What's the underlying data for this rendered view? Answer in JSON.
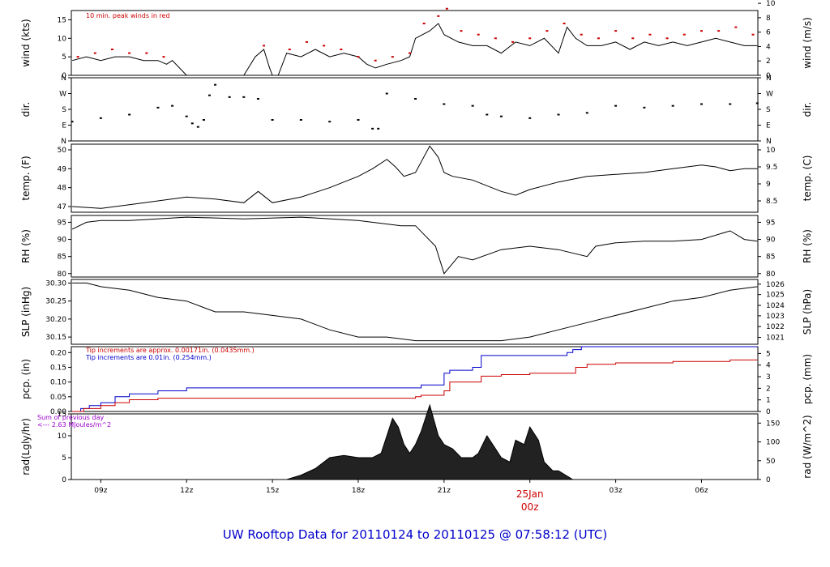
{
  "title": "UW Rooftop Data for 20110124  to  20110125 @ 07:58:12  (UTC)",
  "colors": {
    "red": "#cc0000",
    "blue": "#0000cc",
    "purple": "#9900cc",
    "black": "#000000"
  },
  "chart_data": {
    "type": "line",
    "x_range_utc_hours": [
      7.97,
      31.97
    ],
    "x_ticks": [
      {
        "label": "09z",
        "hour": 9
      },
      {
        "label": "12z",
        "hour": 12
      },
      {
        "label": "15z",
        "hour": 15
      },
      {
        "label": "18z",
        "hour": 18
      },
      {
        "label": "21z",
        "hour": 21
      },
      {
        "label": "03z",
        "hour": 27
      },
      {
        "label": "06z",
        "hour": 30
      }
    ],
    "date_marker": {
      "label": "25Jan",
      "sublabel": "00z",
      "hour": 24
    },
    "panels": [
      {
        "id": "wind",
        "ylabel_left": "wind (kts)",
        "ylabel_right": "wind (m/s)",
        "ylim": [
          0,
          17.5
        ],
        "left_ticks": [
          "0",
          "5",
          "10",
          "15"
        ],
        "left_tick_values": [
          0,
          5,
          10,
          15
        ],
        "right_ticks": [
          "0",
          "2",
          "4",
          "6",
          "8",
          "10"
        ],
        "right_tick_values": [
          0,
          3.888,
          7.776,
          11.664,
          15.552,
          19.44
        ],
        "annotation": "10 min. peak winds in red",
        "series": [
          {
            "name": "wind speed",
            "style": "line",
            "x": [
              8.0,
              8.5,
              9.0,
              9.5,
              10.0,
              10.5,
              11.0,
              11.3,
              11.5,
              12.0,
              13.0,
              14.0,
              14.4,
              14.7,
              14.9,
              15.0,
              15.2,
              15.5,
              16.0,
              16.5,
              17.0,
              17.5,
              18.0,
              18.3,
              18.6,
              19.0,
              19.5,
              19.8,
              20.0,
              20.5,
              20.8,
              21.0,
              21.5,
              22.0,
              22.5,
              23.0,
              23.5,
              24.0,
              24.5,
              25.0,
              25.3,
              25.6,
              26.0,
              26.5,
              27.0,
              27.5,
              28.0,
              28.5,
              29.0,
              29.5,
              30.0,
              30.5,
              31.0,
              31.5,
              31.95
            ],
            "y": [
              4,
              5,
              4,
              5,
              5,
              4,
              4,
              3,
              4,
              0,
              0,
              0,
              5,
              7,
              2,
              0,
              0,
              6,
              5,
              7,
              5,
              6,
              5,
              3,
              2,
              3,
              4,
              5,
              10,
              12,
              14,
              11,
              9,
              8,
              8,
              6,
              9,
              8,
              10,
              6,
              13,
              10,
              8,
              8,
              9,
              7,
              9,
              8,
              9,
              8,
              9,
              10,
              9,
              8,
              8
            ]
          },
          {
            "name": "10 min. peak winds",
            "style": "dots",
            "x": [
              8.2,
              8.8,
              9.4,
              10.0,
              10.6,
              11.2,
              14.7,
              15.6,
              16.2,
              16.8,
              17.4,
              18.0,
              18.6,
              19.2,
              19.8,
              20.3,
              20.8,
              21.1,
              21.6,
              22.2,
              22.8,
              23.4,
              24.0,
              24.6,
              25.2,
              25.8,
              26.4,
              27.0,
              27.6,
              28.2,
              28.8,
              29.4,
              30.0,
              30.6,
              31.2,
              31.8
            ],
            "y": [
              5,
              6,
              7,
              6,
              6,
              5,
              8,
              7,
              9,
              8,
              7,
              5,
              4,
              5,
              6,
              14,
              16,
              18,
              12,
              11,
              10,
              9,
              10,
              12,
              14,
              11,
              10,
              12,
              10,
              11,
              10,
              11,
              12,
              12,
              13,
              11
            ]
          }
        ]
      },
      {
        "id": "dir",
        "ylabel_left": "dir.",
        "ylabel_right": "dir.",
        "ylim": [
          0,
          360
        ],
        "left_ticks": [
          "N",
          "E",
          "S",
          "W",
          "N"
        ],
        "left_tick_values": [
          0,
          90,
          180,
          270,
          360
        ],
        "right_ticks": [
          "N",
          "E",
          "S",
          "W",
          "N"
        ],
        "right_tick_values": [
          0,
          90,
          180,
          270,
          360
        ],
        "series": [
          {
            "name": "wind direction",
            "style": "dots",
            "x": [
              8.0,
              9.0,
              10.0,
              11.0,
              11.5,
              12.0,
              12.2,
              12.4,
              12.6,
              12.8,
              13.0,
              13.5,
              14.0,
              14.5,
              15.0,
              16.0,
              17.0,
              18.0,
              18.5,
              18.7,
              19.0,
              20.0,
              21.0,
              22.0,
              22.5,
              23.0,
              24.0,
              25.0,
              26.0,
              27.0,
              28.0,
              29.0,
              30.0,
              31.0,
              31.95
            ],
            "y": [
              110,
              130,
              150,
              190,
              200,
              140,
              100,
              80,
              120,
              260,
              320,
              250,
              250,
              240,
              120,
              120,
              110,
              120,
              70,
              70,
              270,
              240,
              210,
              200,
              150,
              140,
              130,
              150,
              160,
              200,
              190,
              200,
              210,
              210,
              215
            ]
          }
        ]
      },
      {
        "id": "temp",
        "ylabel_left": "temp. (F)",
        "ylabel_right": "temp. (C)",
        "ylim": [
          46.7,
          50.3
        ],
        "left_ticks": [
          "47",
          "48",
          "49",
          "50"
        ],
        "left_tick_values": [
          47,
          48,
          49,
          50
        ],
        "right_ticks": [
          "8.5",
          "9",
          "9.5",
          "10"
        ],
        "right_tick_values": [
          47.3,
          48.2,
          49.1,
          50.0
        ],
        "series": [
          {
            "name": "temperature",
            "style": "line",
            "x": [
              8.0,
              9.0,
              10.0,
              11.0,
              12.0,
              13.0,
              14.0,
              14.5,
              15.0,
              16.0,
              17.0,
              18.0,
              18.5,
              19.0,
              19.3,
              19.6,
              20.0,
              20.5,
              20.8,
              21.0,
              21.3,
              22.0,
              23.0,
              23.5,
              24.0,
              25.0,
              26.0,
              27.0,
              28.0,
              29.0,
              30.0,
              30.5,
              31.0,
              31.5,
              31.95
            ],
            "y": [
              47.0,
              46.9,
              47.1,
              47.3,
              47.5,
              47.4,
              47.2,
              47.8,
              47.2,
              47.5,
              48.0,
              48.6,
              49.0,
              49.5,
              49.1,
              48.6,
              48.8,
              50.2,
              49.6,
              48.8,
              48.6,
              48.4,
              47.8,
              47.6,
              47.9,
              48.3,
              48.6,
              48.7,
              48.8,
              49.0,
              49.2,
              49.1,
              48.9,
              49.0,
              49.0
            ]
          }
        ]
      },
      {
        "id": "rh",
        "ylabel_left": "RH (%)",
        "ylabel_right": "RH (%)",
        "ylim": [
          79,
          97
        ],
        "left_ticks": [
          "80",
          "85",
          "90",
          "95"
        ],
        "left_tick_values": [
          80,
          85,
          90,
          95
        ],
        "right_ticks": [
          "80",
          "85",
          "90",
          "95"
        ],
        "right_tick_values": [
          80,
          85,
          90,
          95
        ],
        "series": [
          {
            "name": "relative humidity",
            "style": "line",
            "x": [
              8.0,
              8.5,
              9.0,
              10.0,
              12.0,
              14.0,
              16.0,
              18.0,
              19.5,
              20.0,
              20.7,
              21.0,
              21.5,
              22.0,
              23.0,
              24.0,
              25.0,
              26.0,
              26.3,
              27.0,
              28.0,
              29.0,
              30.0,
              31.0,
              31.5,
              31.95
            ],
            "y": [
              93,
              95,
              95.5,
              95.5,
              96.5,
              96,
              96.5,
              95.5,
              94,
              94,
              88,
              80,
              85,
              84,
              87,
              88,
              87,
              85,
              88,
              89,
              89.5,
              89.5,
              90,
              92.5,
              90,
              89.5
            ]
          }
        ]
      },
      {
        "id": "slp",
        "ylabel_left": "SLP (inHg)",
        "ylabel_right": "SLP (hPa)",
        "ylim": [
          30.13,
          30.31
        ],
        "left_ticks": [
          "30.15",
          "30.20",
          "30.25",
          "30.30"
        ],
        "left_tick_values": [
          30.15,
          30.2,
          30.25,
          30.3
        ],
        "right_ticks": [
          "1021",
          "1022",
          "1023",
          "1024",
          "1025",
          "1026"
        ],
        "right_tick_values": [
          30.149,
          30.179,
          30.209,
          30.238,
          30.268,
          30.297
        ],
        "series": [
          {
            "name": "sea level pressure",
            "style": "line",
            "x": [
              8.0,
              8.5,
              9.0,
              10.0,
              11.0,
              12.0,
              13.0,
              14.0,
              15.0,
              16.0,
              17.0,
              18.0,
              19.0,
              20.0,
              21.0,
              22.0,
              23.0,
              24.0,
              25.0,
              26.0,
              27.0,
              28.0,
              29.0,
              30.0,
              31.0,
              31.95
            ],
            "y": [
              30.3,
              30.3,
              30.29,
              30.28,
              30.26,
              30.25,
              30.22,
              30.22,
              30.21,
              30.2,
              30.17,
              30.15,
              30.15,
              30.14,
              30.14,
              30.14,
              30.14,
              30.15,
              30.17,
              30.19,
              30.21,
              30.23,
              30.25,
              30.26,
              30.28,
              30.29
            ]
          }
        ]
      },
      {
        "id": "pcp",
        "ylabel_left": "pcp. (in)",
        "ylabel_right": "pcp. (mm)",
        "ylim": [
          0,
          0.22
        ],
        "left_ticks": [
          "0.00",
          "0.05",
          "0.10",
          "0.15",
          "0.20"
        ],
        "left_tick_values": [
          0,
          0.05,
          0.1,
          0.15,
          0.2
        ],
        "right_ticks": [
          "0",
          "1",
          "2",
          "3",
          "4",
          "5"
        ],
        "right_tick_values": [
          0,
          0.0394,
          0.0787,
          0.1181,
          0.1575,
          0.1969
        ],
        "annotations": [
          {
            "text": "Tip increments are approx. 0.00171in. (0.0435mm.)",
            "color": "red"
          },
          {
            "text": "Tip increments are 0.01in. (0.254mm.)",
            "color": "blue"
          }
        ],
        "series": [
          {
            "name": "blue gauge",
            "style": "step",
            "color": "blue",
            "x": [
              8.0,
              8.3,
              8.6,
              9.0,
              9.5,
              10.0,
              11.0,
              12.0,
              13.0,
              14.0,
              16.0,
              18.0,
              20.0,
              20.2,
              21.0,
              21.2,
              22.0,
              22.3,
              23.0,
              24.0,
              25.0,
              25.3,
              25.5,
              25.8,
              26.0,
              31.95
            ],
            "y": [
              0.0,
              0.01,
              0.02,
              0.03,
              0.05,
              0.06,
              0.07,
              0.08,
              0.08,
              0.08,
              0.08,
              0.08,
              0.08,
              0.09,
              0.13,
              0.14,
              0.15,
              0.19,
              0.19,
              0.19,
              0.19,
              0.2,
              0.21,
              0.22,
              0.22,
              0.22
            ]
          },
          {
            "name": "red gauge",
            "style": "step",
            "color": "red",
            "x": [
              8.0,
              8.4,
              9.0,
              9.5,
              10.0,
              11.0,
              14.0,
              18.0,
              20.0,
              20.2,
              21.0,
              21.2,
              22.0,
              22.3,
              23.0,
              24.0,
              25.3,
              25.6,
              26.0,
              27.0,
              28.0,
              29.0,
              30.0,
              31.0,
              31.95
            ],
            "y": [
              0.0,
              0.01,
              0.02,
              0.03,
              0.04,
              0.045,
              0.045,
              0.045,
              0.05,
              0.055,
              0.07,
              0.1,
              0.1,
              0.12,
              0.125,
              0.13,
              0.13,
              0.15,
              0.16,
              0.165,
              0.165,
              0.17,
              0.17,
              0.175,
              0.175
            ]
          }
        ]
      },
      {
        "id": "rad",
        "ylabel_left": "rad(Lgly/hr)",
        "ylabel_right": "rad (W/m^2)",
        "ylim": [
          0,
          15
        ],
        "left_ticks": [
          "0",
          "5",
          "10",
          "15"
        ],
        "left_tick_values": [
          0,
          5,
          10,
          15
        ],
        "right_ticks": [
          "0",
          "50",
          "100",
          "150"
        ],
        "right_tick_values": [
          0,
          4.3,
          8.6,
          12.9
        ],
        "annotations": [
          {
            "text": "Sum of previous day",
            "color": "purple"
          },
          {
            "text": "<--- 2.63 MJoules/m^2",
            "color": "purple"
          }
        ],
        "series": [
          {
            "name": "solar radiation",
            "style": "area",
            "x": [
              8.0,
              15.5,
              16.0,
              16.5,
              17.0,
              17.5,
              18.0,
              18.5,
              18.8,
              19.0,
              19.2,
              19.4,
              19.6,
              19.8,
              20.0,
              20.2,
              20.5,
              20.8,
              21.0,
              21.3,
              21.6,
              22.0,
              22.2,
              22.5,
              22.8,
              23.0,
              23.3,
              23.5,
              23.8,
              24.0,
              24.3,
              24.5,
              24.8,
              25.0,
              25.5,
              31.95
            ],
            "y": [
              0,
              0,
              1,
              2.5,
              5,
              5.5,
              5,
              5,
              6,
              10,
              14,
              12,
              8,
              6,
              8,
              11,
              17,
              10,
              8,
              7,
              5,
              5,
              6,
              10,
              7,
              5,
              4,
              9,
              8,
              12,
              9,
              4,
              2,
              2,
              0,
              0
            ]
          }
        ]
      }
    ]
  }
}
